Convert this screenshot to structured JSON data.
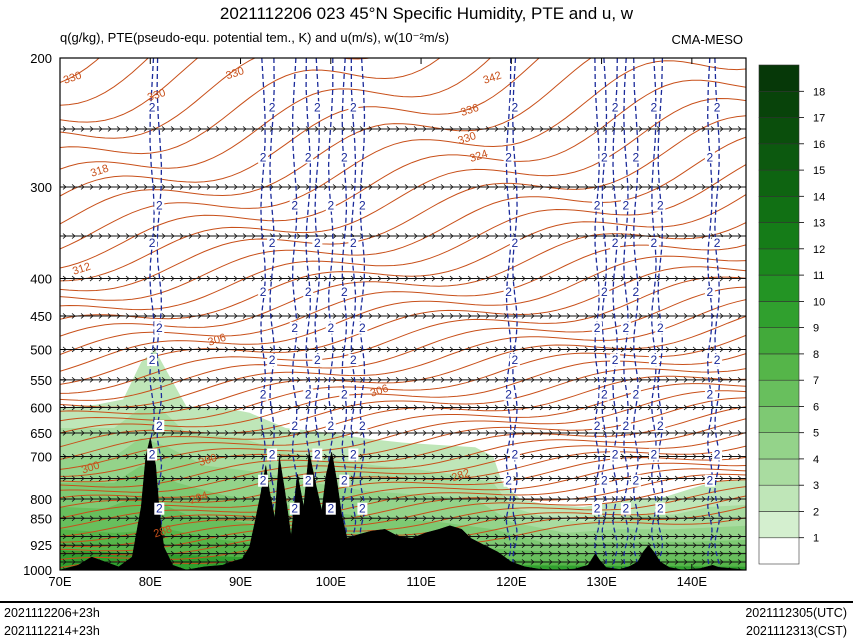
{
  "chart_data": {
    "type": "heatmap",
    "title": "2021112206 023 45°N Specific Humidity, PTE and u, w",
    "subtitle": "q(g/kg), PTE(pseudo-equ. potential tem., K) and u(m/s), w(10⁻²m/s)",
    "model": "CMA-MESO",
    "x_axis": {
      "range": [
        70,
        146
      ],
      "ticks": [
        70,
        80,
        90,
        100,
        110,
        120,
        130,
        140
      ],
      "tick_labels": [
        "70E",
        "80E",
        "90E",
        "100E",
        "110E",
        "120E",
        "130E",
        "140E"
      ]
    },
    "y_axis": {
      "range": [
        1000,
        200
      ],
      "scale": "log-pressure",
      "ticks": [
        200,
        300,
        400,
        450,
        500,
        550,
        600,
        650,
        700,
        800,
        850,
        925,
        1000
      ],
      "tick_labels": [
        "200",
        "300",
        "400",
        "450",
        "500",
        "550",
        "600",
        "650",
        "700",
        "800",
        "850",
        "925",
        "1000"
      ]
    },
    "colorbar": {
      "labels": [
        "1",
        "2",
        "3",
        "4",
        "5",
        "6",
        "7",
        "8",
        "9",
        "10",
        "11",
        "12",
        "13",
        "14",
        "15",
        "16",
        "17",
        "18"
      ],
      "colors": [
        "#ffffff",
        "#d4efcf",
        "#bfe6b8",
        "#a9dca0",
        "#94d38a",
        "#7ec973",
        "#68bf5d",
        "#55b549",
        "#42aa3a",
        "#30a02e",
        "#239424",
        "#1b881d",
        "#157c18",
        "#117014",
        "#0e6411",
        "#0c590f",
        "#0a4e0c",
        "#08430a",
        "#063808"
      ]
    },
    "pte_contour_labels": [
      {
        "value": "330",
        "lon": 71.5,
        "p": 215
      },
      {
        "value": "330",
        "lon": 80.8,
        "p": 227
      },
      {
        "value": "330",
        "lon": 89.5,
        "p": 212
      },
      {
        "value": "342",
        "lon": 118,
        "p": 215
      },
      {
        "value": "336",
        "lon": 115.5,
        "p": 238
      },
      {
        "value": "330",
        "lon": 115.2,
        "p": 260
      },
      {
        "value": "324",
        "lon": 116.5,
        "p": 275
      },
      {
        "value": "318",
        "lon": 74.5,
        "p": 288
      },
      {
        "value": "312",
        "lon": 72.5,
        "p": 392
      },
      {
        "value": "306",
        "lon": 87.5,
        "p": 490
      },
      {
        "value": "306",
        "lon": 105.5,
        "p": 575
      },
      {
        "value": "300",
        "lon": 73.5,
        "p": 732
      },
      {
        "value": "300",
        "lon": 86.5,
        "p": 715
      },
      {
        "value": "294",
        "lon": 85.5,
        "p": 805
      },
      {
        "value": "288",
        "lon": 81.5,
        "p": 895
      },
      {
        "value": "282",
        "lon": 114.5,
        "p": 750
      }
    ],
    "w_contour_labels": [
      "2",
      "2",
      "2",
      "2",
      "2",
      "2",
      "2",
      "2",
      "2",
      "2",
      "2",
      "2",
      "2",
      "2",
      "2",
      "2",
      "2",
      "2",
      "2",
      "2",
      "2",
      "2",
      "2",
      "2"
    ],
    "w_contour_lons": [
      80.2,
      81.0,
      92.5,
      93.5,
      96.0,
      97.5,
      98.5,
      100.0,
      101.5,
      102.5,
      103.5,
      119.7,
      120.4,
      129.5,
      130.3,
      131.5,
      132.7,
      133.8,
      135.8,
      136.5,
      142.0,
      142.8
    ],
    "w_label_pressures": [
      235,
      275,
      320,
      360,
      420,
      470,
      520,
      580,
      640,
      700,
      760,
      830
    ],
    "wind_levels": [
      250,
      300,
      350,
      400,
      450,
      500,
      550,
      600,
      650,
      700,
      750,
      800,
      850,
      900,
      925,
      950,
      975,
      1000
    ],
    "terrain": [
      [
        70,
        1000
      ],
      [
        72,
        985
      ],
      [
        73.5,
        960
      ],
      [
        75,
        975
      ],
      [
        76.5,
        990
      ],
      [
        78,
        960
      ],
      [
        79,
        820
      ],
      [
        79.5,
        700
      ],
      [
        80,
        660
      ],
      [
        80.6,
        720
      ],
      [
        81,
        830
      ],
      [
        81.5,
        930
      ],
      [
        82.5,
        985
      ],
      [
        84,
        1000
      ],
      [
        86,
        990
      ],
      [
        88,
        985
      ],
      [
        89,
        975
      ],
      [
        90.2,
        965
      ],
      [
        91,
        930
      ],
      [
        91.6,
        860
      ],
      [
        92.3,
        780
      ],
      [
        92.8,
        720
      ],
      [
        93.2,
        780
      ],
      [
        93.8,
        850
      ],
      [
        94.3,
        700
      ],
      [
        94.9,
        780
      ],
      [
        95.6,
        900
      ],
      [
        96.3,
        740
      ],
      [
        97.0,
        820
      ],
      [
        97.6,
        690
      ],
      [
        98.3,
        760
      ],
      [
        99.0,
        830
      ],
      [
        99.5,
        740
      ],
      [
        100.1,
        690
      ],
      [
        100.7,
        760
      ],
      [
        101.2,
        840
      ],
      [
        101.8,
        905
      ],
      [
        103,
        895
      ],
      [
        104.5,
        885
      ],
      [
        106,
        880
      ],
      [
        107.5,
        900
      ],
      [
        109,
        905
      ],
      [
        110.5,
        890
      ],
      [
        112,
        880
      ],
      [
        113.2,
        870
      ],
      [
        114.5,
        880
      ],
      [
        115.5,
        905
      ],
      [
        117,
        925
      ],
      [
        118.5,
        945
      ],
      [
        120,
        975
      ],
      [
        121.5,
        990
      ],
      [
        123,
        997
      ],
      [
        125,
        1000
      ],
      [
        127,
        997
      ],
      [
        128.5,
        985
      ],
      [
        129.3,
        950
      ],
      [
        129.8,
        970
      ],
      [
        130.5,
        992
      ],
      [
        132,
        998
      ],
      [
        133,
        990
      ],
      [
        134,
        975
      ],
      [
        134.6,
        945
      ],
      [
        135.2,
        925
      ],
      [
        135.8,
        945
      ],
      [
        136.5,
        975
      ],
      [
        137.5,
        992
      ],
      [
        139,
        1000
      ],
      [
        141,
        995
      ],
      [
        142.3,
        985
      ],
      [
        143,
        992
      ],
      [
        145,
        997
      ],
      [
        146,
        1000
      ]
    ],
    "moist_regions": [
      {
        "q": 2,
        "poly": [
          [
            70,
            600
          ],
          [
            74,
            595
          ],
          [
            77,
            585
          ],
          [
            79,
            520
          ],
          [
            80.5,
            500
          ],
          [
            82,
            540
          ],
          [
            84,
            598
          ],
          [
            88,
            600
          ],
          [
            91,
            610
          ],
          [
            95,
            640
          ],
          [
            100,
            650
          ],
          [
            104,
            662
          ],
          [
            108,
            670
          ],
          [
            112,
            675
          ],
          [
            116,
            680
          ],
          [
            118,
            700
          ],
          [
            119,
            760
          ],
          [
            121,
            800
          ],
          [
            124,
            815
          ],
          [
            128,
            820
          ],
          [
            134,
            800
          ],
          [
            137,
            795
          ],
          [
            142,
            760
          ],
          [
            146,
            750
          ],
          [
            146,
            1000
          ],
          [
            70,
            1000
          ]
        ]
      },
      {
        "q": 3,
        "poly": [
          [
            70,
            640
          ],
          [
            76,
            640
          ],
          [
            79,
            600
          ],
          [
            81,
            600
          ],
          [
            84,
            650
          ],
          [
            90,
            660
          ],
          [
            95,
            690
          ],
          [
            100,
            705
          ],
          [
            105,
            720
          ],
          [
            110,
            730
          ],
          [
            115,
            745
          ],
          [
            118,
            760
          ],
          [
            120,
            820
          ],
          [
            124,
            850
          ],
          [
            128,
            860
          ],
          [
            134,
            840
          ],
          [
            138,
            840
          ],
          [
            142,
            820
          ],
          [
            146,
            815
          ],
          [
            146,
            1000
          ],
          [
            70,
            1000
          ]
        ]
      },
      {
        "q": 4,
        "poly": [
          [
            70,
            700
          ],
          [
            76,
            700
          ],
          [
            79,
            660
          ],
          [
            82,
            680
          ],
          [
            86,
            720
          ],
          [
            92,
            735
          ],
          [
            98,
            760
          ],
          [
            104,
            780
          ],
          [
            110,
            790
          ],
          [
            116,
            800
          ],
          [
            120,
            860
          ],
          [
            126,
            890
          ],
          [
            132,
            880
          ],
          [
            138,
            880
          ],
          [
            146,
            870
          ],
          [
            146,
            1000
          ],
          [
            70,
            1000
          ]
        ]
      },
      {
        "q": 5,
        "poly": [
          [
            70,
            760
          ],
          [
            76,
            760
          ],
          [
            79,
            720
          ],
          [
            83,
            760
          ],
          [
            88,
            790
          ],
          [
            94,
            810
          ],
          [
            100,
            835
          ],
          [
            106,
            850
          ],
          [
            112,
            860
          ],
          [
            118,
            880
          ],
          [
            124,
            920
          ],
          [
            132,
            915
          ],
          [
            140,
            915
          ],
          [
            146,
            910
          ],
          [
            146,
            1000
          ],
          [
            70,
            1000
          ]
        ]
      },
      {
        "q": 6,
        "poly": [
          [
            70,
            820
          ],
          [
            75,
            825
          ],
          [
            79,
            790
          ],
          [
            84,
            840
          ],
          [
            90,
            860
          ],
          [
            96,
            880
          ],
          [
            102,
            900
          ],
          [
            110,
            920
          ],
          [
            118,
            935
          ],
          [
            128,
            950
          ],
          [
            138,
            945
          ],
          [
            146,
            945
          ],
          [
            146,
            1000
          ],
          [
            70,
            1000
          ]
        ]
      },
      {
        "q": 7,
        "poly": [
          [
            70,
            880
          ],
          [
            76,
            890
          ],
          [
            82,
            880
          ],
          [
            88,
            910
          ],
          [
            96,
            930
          ],
          [
            104,
            950
          ],
          [
            114,
            960
          ],
          [
            126,
            975
          ],
          [
            140,
            970
          ],
          [
            146,
            970
          ],
          [
            146,
            1000
          ],
          [
            70,
            1000
          ]
        ]
      },
      {
        "q": 9,
        "poly": [
          [
            70,
            940
          ],
          [
            80,
            950
          ],
          [
            90,
            960
          ],
          [
            104,
            975
          ],
          [
            120,
            985
          ],
          [
            146,
            990
          ],
          [
            146,
            1000
          ],
          [
            70,
            1000
          ]
        ]
      }
    ],
    "footer": {
      "left_line1": "2021112206+23h",
      "left_line2": "2021112214+23h",
      "right_line1": "2021112305(UTC)",
      "right_line2": "2021112313(CST)"
    }
  }
}
